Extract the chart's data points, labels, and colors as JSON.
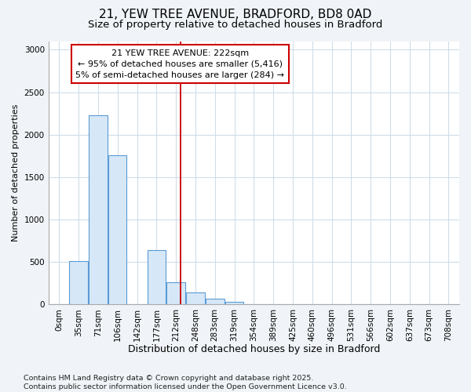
{
  "title": "21, YEW TREE AVENUE, BRADFORD, BD8 0AD",
  "subtitle": "Size of property relative to detached houses in Bradford",
  "xlabel": "Distribution of detached houses by size in Bradford",
  "ylabel": "Number of detached properties",
  "footer": "Contains HM Land Registry data © Crown copyright and database right 2025.\nContains public sector information licensed under the Open Government Licence v3.0.",
  "bar_labels": [
    "0sqm",
    "35sqm",
    "71sqm",
    "106sqm",
    "142sqm",
    "177sqm",
    "212sqm",
    "248sqm",
    "283sqm",
    "319sqm",
    "354sqm",
    "389sqm",
    "425sqm",
    "460sqm",
    "496sqm",
    "531sqm",
    "566sqm",
    "602sqm",
    "637sqm",
    "673sqm",
    "708sqm"
  ],
  "bar_values": [
    0,
    510,
    2230,
    1760,
    0,
    640,
    260,
    140,
    70,
    30,
    0,
    0,
    0,
    0,
    0,
    0,
    0,
    0,
    0,
    0,
    0
  ],
  "bar_color": "#d6e8f7",
  "bar_edge_color": "#5b9bd5",
  "grid_color": "#d0dde8",
  "bg_color": "#ffffff",
  "fig_bg_color": "#f0f4f8",
  "vline_color": "#cc0000",
  "vline_x": 6.22,
  "annotation_text": "21 YEW TREE AVENUE: 222sqm\n← 95% of detached houses are smaller (5,416)\n5% of semi-detached houses are larger (284) →",
  "annotation_box_facecolor": "#ffffff",
  "annotation_box_edgecolor": "#cc0000",
  "ylim": [
    0,
    3100
  ],
  "yticks": [
    0,
    500,
    1000,
    1500,
    2000,
    2500,
    3000
  ],
  "title_fontsize": 11,
  "subtitle_fontsize": 9.5,
  "xlabel_fontsize": 9,
  "ylabel_fontsize": 8,
  "tick_fontsize": 7.5,
  "annot_fontsize": 8,
  "footer_fontsize": 6.8
}
